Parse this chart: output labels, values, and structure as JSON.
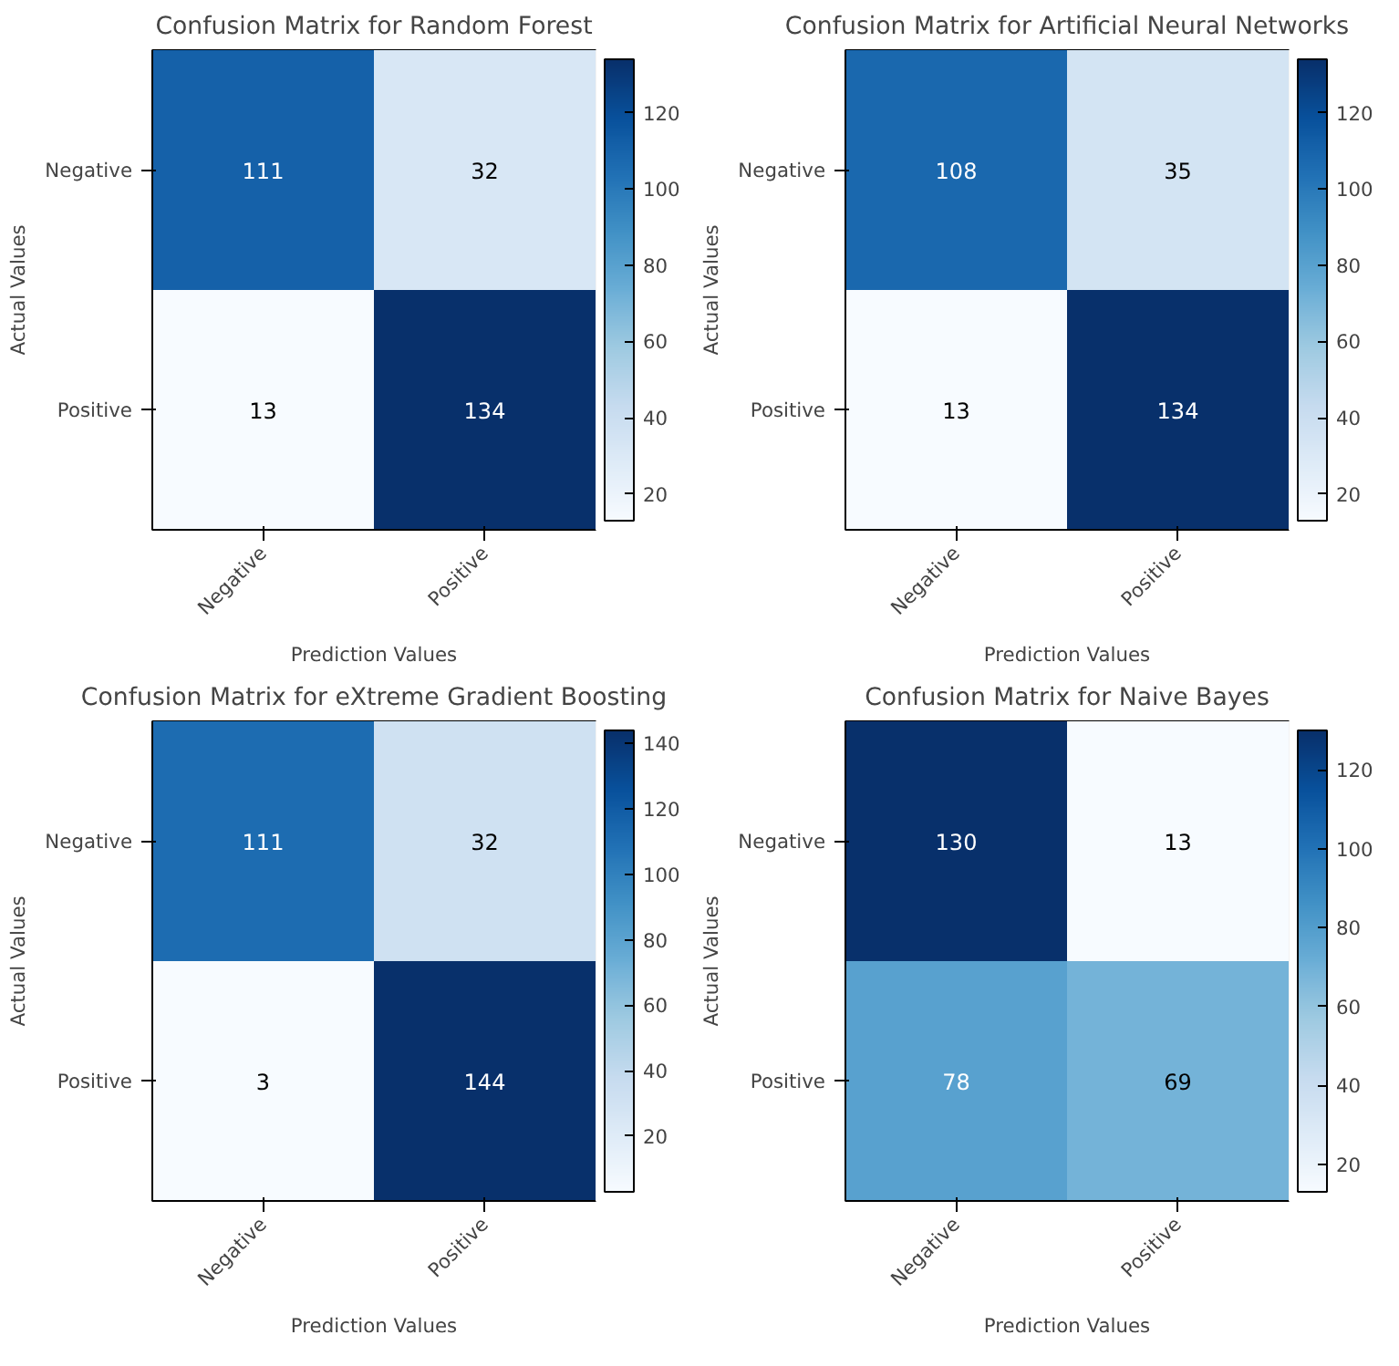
{
  "chart_data": [
    {
      "type": "heatmap",
      "title": "Confusion Matrix for Random Forest",
      "xlabel": "Prediction Values",
      "ylabel": "Actual Values",
      "categories": [
        "Negative",
        "Positive"
      ],
      "y_categories": [
        "Negative",
        "Positive"
      ],
      "cells": [
        [
          111,
          32
        ],
        [
          13,
          134
        ]
      ],
      "clim": [
        13,
        134
      ],
      "cticks": [
        20,
        40,
        60,
        80,
        100,
        120
      ],
      "data_labels": true
    },
    {
      "type": "heatmap",
      "title": "Confusion Matrix for Artificial Neural Networks",
      "xlabel": "Prediction Values",
      "ylabel": "Actual Values",
      "categories": [
        "Negative",
        "Positive"
      ],
      "y_categories": [
        "Negative",
        "Positive"
      ],
      "cells": [
        [
          108,
          35
        ],
        [
          13,
          134
        ]
      ],
      "clim": [
        13,
        134
      ],
      "cticks": [
        20,
        40,
        60,
        80,
        100,
        120
      ],
      "data_labels": true
    },
    {
      "type": "heatmap",
      "title": "Confusion Matrix for eXtreme Gradient Boosting",
      "xlabel": "Prediction Values",
      "ylabel": "Actual Values",
      "categories": [
        "Negative",
        "Positive"
      ],
      "y_categories": [
        "Negative",
        "Positive"
      ],
      "cells": [
        [
          111,
          32
        ],
        [
          3,
          144
        ]
      ],
      "clim": [
        3,
        144
      ],
      "cticks": [
        20,
        40,
        60,
        80,
        100,
        120,
        140
      ],
      "data_labels": true
    },
    {
      "type": "heatmap",
      "title": "Confusion Matrix for Naive Bayes",
      "xlabel": "Prediction Values",
      "ylabel": "Actual Values",
      "categories": [
        "Negative",
        "Positive"
      ],
      "y_categories": [
        "Negative",
        "Positive"
      ],
      "cells": [
        [
          130,
          13
        ],
        [
          78,
          69
        ]
      ],
      "clim": [
        13,
        130
      ],
      "cticks": [
        20,
        40,
        60,
        80,
        100,
        120
      ],
      "data_labels": true
    }
  ]
}
